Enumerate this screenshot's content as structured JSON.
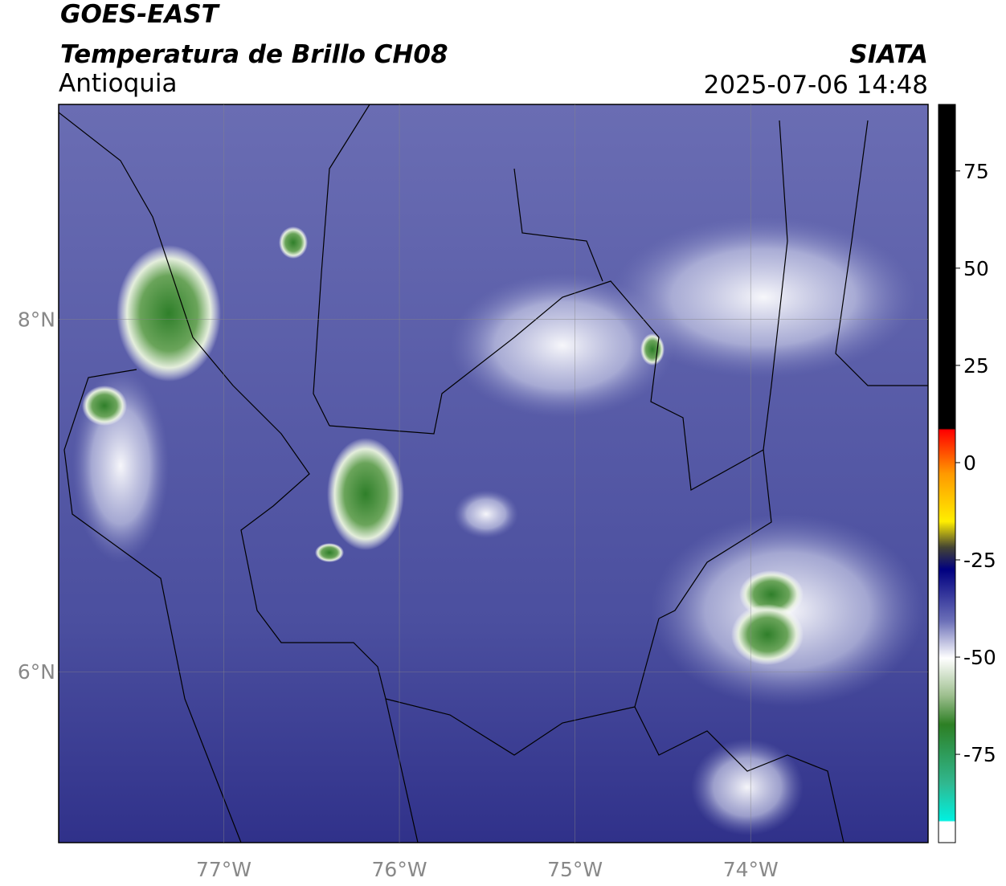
{
  "header": {
    "title": "GOES-EAST",
    "subtitle": "Temperatura de Brillo CH08",
    "region": "Antioquia",
    "source": "SIATA",
    "datetime": "2025-07-06 14:48"
  },
  "map": {
    "xlim": [
      -77.94,
      -72.99
    ],
    "ylim": [
      5.03,
      9.22
    ],
    "xticks": [
      {
        "value": -77,
        "label": "77°W"
      },
      {
        "value": -76,
        "label": "76°W"
      },
      {
        "value": -75,
        "label": "75°W"
      },
      {
        "value": -74,
        "label": "74°W"
      }
    ],
    "yticks": [
      {
        "value": 8,
        "label": "8°N"
      },
      {
        "value": 6,
        "label": "6°N"
      }
    ],
    "grid": true
  },
  "colorbar": {
    "lim": [
      -97.7,
      92.1
    ],
    "ticks": [
      75,
      50,
      25,
      0,
      -25,
      -50,
      -75
    ]
  }
}
